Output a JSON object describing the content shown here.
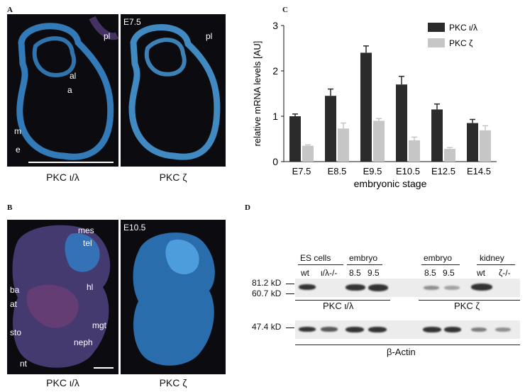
{
  "panels": {
    "A": {
      "letter": "A",
      "stage": "E7.5",
      "left_labels": [
        "al",
        "a",
        "m",
        "e"
      ],
      "pl_left": "pl",
      "pl_right": "pl",
      "caption_left": "PKC ι/λ",
      "caption_right": "PKC ζ"
    },
    "B": {
      "letter": "B",
      "stage": "E10.5",
      "labels": [
        "mes",
        "tel",
        "hl",
        "ba",
        "at",
        "mgt",
        "sto",
        "neph",
        "nt"
      ],
      "caption_left": "PKC ι/λ",
      "caption_right": "PKC ζ"
    },
    "C": {
      "letter": "C"
    },
    "D": {
      "letter": "D",
      "groups": [
        "ES cells",
        "embryo",
        "embryo",
        "kidney"
      ],
      "lanes": [
        "wt",
        "ι/λ-/-",
        "8.5",
        "9.5",
        "8.5",
        "9.5",
        "wt",
        "ζ-/-"
      ],
      "markers": [
        "81.2 kD",
        "60.7 kD",
        "47.4 kD"
      ],
      "label_pkc_il": "PKC ι/λ",
      "label_pkc_z": "PKC ζ",
      "label_actin": "β-Actin"
    }
  },
  "chart_data": {
    "type": "bar",
    "categories": [
      "E7.5",
      "E8.5",
      "E9.5",
      "E10.5",
      "E12.5",
      "E14.5"
    ],
    "series": [
      {
        "name": "PKC ι/λ",
        "values": [
          1.0,
          1.45,
          2.4,
          1.7,
          1.15,
          0.85
        ],
        "errors": [
          0.05,
          0.15,
          0.15,
          0.18,
          0.12,
          0.08
        ],
        "color": "#2b2b2b"
      },
      {
        "name": "PKC ζ",
        "values": [
          0.35,
          0.73,
          0.9,
          0.47,
          0.28,
          0.69
        ],
        "errors": [
          0.02,
          0.12,
          0.05,
          0.07,
          0.03,
          0.1
        ],
        "color": "#c6c6c6"
      }
    ],
    "xlabel": "embryonic stage",
    "ylabel": "relative mRNA levels [AU]",
    "ylim": [
      0,
      3
    ],
    "yticks": [
      0,
      1,
      2,
      3
    ],
    "legend": "top-right",
    "grid": false
  }
}
